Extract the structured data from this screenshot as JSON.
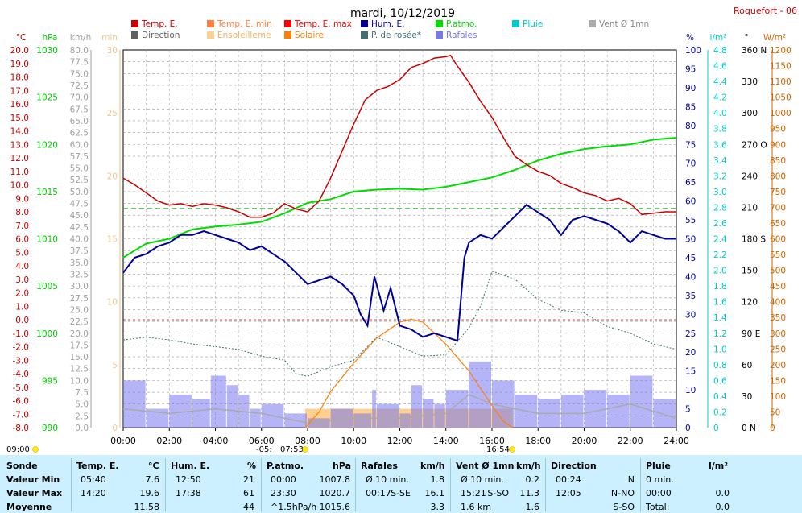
{
  "header": {
    "title": "mardi, 10/12/2019",
    "station": "Roquefort - 06"
  },
  "colors": {
    "temp": "#cc0000",
    "temp_min": "#ff8040",
    "temp_max": "#ff0000",
    "direction": "#606060",
    "ensoleillement": "#ffd090",
    "solaire": "#ff8000",
    "hum": "#000099",
    "pressure": "#00dd00",
    "dewpoint": "#407070",
    "pluie": "#00cccc",
    "rafales": "#7777ee",
    "vent": "#aaaaaa"
  },
  "legend": [
    {
      "label": "Temp. E.",
      "color": "#cc0000"
    },
    {
      "label": "Temp. E. min",
      "color": "#ff8040"
    },
    {
      "label": "Temp. E. max",
      "color": "#ff0000"
    },
    {
      "label": "Hum. E.",
      "color": "#000099"
    },
    {
      "label": "P.atmo.",
      "color": "#00dd00"
    },
    {
      "label": "Pluie",
      "color": "#00cccc"
    },
    {
      "label": "Vent Ø 1mn",
      "color": "#aaaaaa"
    },
    {
      "label": "Direction",
      "color": "#606060"
    },
    {
      "label": "Ensoleilleme",
      "color": "#ffd090"
    },
    {
      "label": "Solaire",
      "color": "#ff8000"
    },
    {
      "label": "P. de rosée*",
      "color": "#407070"
    },
    {
      "label": "Rafales",
      "color": "#7777ee"
    }
  ],
  "axes": {
    "temp": {
      "unit": "°C",
      "ticks": [
        "20.0",
        "19.0",
        "18.0",
        "17.0",
        "16.0",
        "15.0",
        "14.0",
        "13.0",
        "12.0",
        "11.0",
        "10.0",
        "9.0",
        "8.0",
        "7.0",
        "6.0",
        "5.0",
        "4.0",
        "3.0",
        "2.0",
        "1.0",
        "0.0",
        "-1.0",
        "-2.0",
        "-3.0",
        "-4.0",
        "-5.0",
        "-6.0",
        "-7.0",
        "-8.0"
      ]
    },
    "pressure": {
      "unit": "hPa",
      "ticks": [
        "1030",
        "1025",
        "1020",
        "1015",
        "1010",
        "1005",
        "1000",
        "995",
        "990"
      ]
    },
    "wind": {
      "unit": "km/h",
      "ticks": [
        "80.0",
        "77.5",
        "75.0",
        "72.5",
        "70.0",
        "67.5",
        "65.0",
        "62.5",
        "60.0",
        "57.5",
        "55.0",
        "52.5",
        "50.0",
        "47.5",
        "45.0",
        "42.5",
        "40.0",
        "37.5",
        "35.0",
        "32.5",
        "30.0",
        "27.5",
        "25.0",
        "22.5",
        "20.0",
        "17.5",
        "15.0",
        "12.5",
        "10.0",
        "7.5",
        "5.0",
        "2.5",
        "0.0"
      ]
    },
    "min": {
      "unit": "min",
      "ticks": [
        "30",
        "25",
        "20",
        "15",
        "10",
        "5",
        "0"
      ]
    },
    "hum": {
      "unit": "%",
      "ticks": [
        "100",
        "95",
        "90",
        "85",
        "80",
        "75",
        "70",
        "65",
        "60",
        "55",
        "50",
        "45",
        "40",
        "35",
        "30",
        "25",
        "20",
        "15",
        "10",
        "5",
        "0"
      ]
    },
    "rain": {
      "unit": "l/m²",
      "ticks": [
        "4.8",
        "4.6",
        "4.4",
        "4.2",
        "4.0",
        "3.8",
        "3.6",
        "3.4",
        "3.2",
        "3.0",
        "2.8",
        "2.6",
        "2.4",
        "2.2",
        "2.0",
        "1.8",
        "1.6",
        "1.4",
        "1.2",
        "1.0",
        "0.8",
        "0.6",
        "0.4",
        "0.2",
        "0"
      ]
    },
    "dir": {
      "unit": "°",
      "ticks": [
        "360 N",
        "330",
        "300",
        "270 O",
        "240",
        "210",
        "180 S",
        "150",
        "120",
        "90 E",
        "60",
        "30",
        "0 N"
      ]
    },
    "solar": {
      "unit": "W/m²",
      "ticks": [
        "1200",
        "1150",
        "1100",
        "1050",
        "1000",
        "950",
        "900",
        "850",
        "800",
        "750",
        "700",
        "650",
        "600",
        "550",
        "500",
        "450",
        "400",
        "350",
        "300",
        "250",
        "200",
        "150",
        "100",
        "50",
        "0"
      ]
    },
    "time": {
      "ticks": [
        "00:00",
        "02:00",
        "04:00",
        "06:00",
        "08:00",
        "10:00",
        "12:00",
        "14:00",
        "16:00",
        "18:00",
        "20:00",
        "22:00",
        "24:00"
      ]
    }
  },
  "sun": {
    "prev": "09:00",
    "sunrise": "07:53",
    "sunset": "16:54",
    "dawn_note": "-05:"
  },
  "chart_data": {
    "type": "line",
    "x_unit": "hours",
    "series": [
      {
        "name": "Temp. E.",
        "unit": "°C",
        "points": [
          [
            0,
            10.5
          ],
          [
            0.5,
            10
          ],
          [
            1,
            9.4
          ],
          [
            1.5,
            8.8
          ],
          [
            2,
            8.5
          ],
          [
            2.5,
            8.6
          ],
          [
            3,
            8.4
          ],
          [
            3.5,
            8.6
          ],
          [
            4,
            8.5
          ],
          [
            4.5,
            8.3
          ],
          [
            5,
            8
          ],
          [
            5.5,
            7.6
          ],
          [
            6,
            7.6
          ],
          [
            6.5,
            7.9
          ],
          [
            7,
            8.6
          ],
          [
            7.5,
            8.2
          ],
          [
            8,
            8
          ],
          [
            8.5,
            8.8
          ],
          [
            9,
            10.5
          ],
          [
            9.5,
            12.5
          ],
          [
            10,
            14.5
          ],
          [
            10.5,
            16.3
          ],
          [
            11,
            17
          ],
          [
            11.5,
            17.3
          ],
          [
            12,
            17.8
          ],
          [
            12.5,
            18.7
          ],
          [
            13,
            19
          ],
          [
            13.5,
            19.4
          ],
          [
            14,
            19.5
          ],
          [
            14.2,
            19.6
          ],
          [
            14.5,
            18.8
          ],
          [
            15,
            17.6
          ],
          [
            15.5,
            16.2
          ],
          [
            16,
            15
          ],
          [
            16.5,
            13.5
          ],
          [
            17,
            12.1
          ],
          [
            17.5,
            11.5
          ],
          [
            18,
            11
          ],
          [
            18.5,
            10.7
          ],
          [
            19,
            10.1
          ],
          [
            19.5,
            9.8
          ],
          [
            20,
            9.4
          ],
          [
            20.5,
            9.2
          ],
          [
            21,
            8.8
          ],
          [
            21.5,
            9
          ],
          [
            22,
            8.6
          ],
          [
            22.5,
            7.8
          ],
          [
            23,
            7.9
          ],
          [
            23.5,
            8
          ],
          [
            24,
            8
          ]
        ]
      },
      {
        "name": "Hum. E.",
        "unit": "%",
        "points": [
          [
            0,
            41
          ],
          [
            0.5,
            45
          ],
          [
            1,
            46
          ],
          [
            1.5,
            48
          ],
          [
            2,
            49
          ],
          [
            2.5,
            51
          ],
          [
            3,
            51
          ],
          [
            3.5,
            52
          ],
          [
            4,
            51
          ],
          [
            4.5,
            50
          ],
          [
            5,
            49
          ],
          [
            5.5,
            47
          ],
          [
            6,
            48
          ],
          [
            6.5,
            46
          ],
          [
            7,
            44
          ],
          [
            7.5,
            41
          ],
          [
            8,
            38
          ],
          [
            8.5,
            39
          ],
          [
            9,
            40
          ],
          [
            9.5,
            38
          ],
          [
            10,
            35
          ],
          [
            10.3,
            30
          ],
          [
            10.6,
            27
          ],
          [
            10.9,
            40
          ],
          [
            11.3,
            31
          ],
          [
            11.6,
            37
          ],
          [
            12,
            27
          ],
          [
            12.5,
            26
          ],
          [
            13,
            24
          ],
          [
            13.5,
            25
          ],
          [
            14,
            24
          ],
          [
            14.5,
            23
          ],
          [
            14.8,
            45
          ],
          [
            15,
            49
          ],
          [
            15.5,
            51
          ],
          [
            16,
            50
          ],
          [
            16.5,
            53
          ],
          [
            17,
            56
          ],
          [
            17.5,
            59
          ],
          [
            18,
            57
          ],
          [
            18.5,
            55
          ],
          [
            19,
            51
          ],
          [
            19.5,
            55
          ],
          [
            20,
            56
          ],
          [
            20.5,
            55
          ],
          [
            21,
            54
          ],
          [
            21.5,
            52
          ],
          [
            22,
            49
          ],
          [
            22.5,
            52
          ],
          [
            23,
            51
          ],
          [
            23.5,
            50
          ],
          [
            24,
            50
          ]
        ]
      },
      {
        "name": "P.atmo.",
        "unit": "hPa",
        "points": [
          [
            0,
            1008
          ],
          [
            1,
            1009.5
          ],
          [
            2,
            1010
          ],
          [
            3,
            1011
          ],
          [
            4,
            1011.3
          ],
          [
            5,
            1011.5
          ],
          [
            6,
            1011.8
          ],
          [
            7,
            1012.7
          ],
          [
            8,
            1013.8
          ],
          [
            9,
            1014.2
          ],
          [
            10,
            1015
          ],
          [
            11,
            1015.2
          ],
          [
            12,
            1015.3
          ],
          [
            13,
            1015.2
          ],
          [
            14,
            1015.5
          ],
          [
            15,
            1016
          ],
          [
            16,
            1016.5
          ],
          [
            17,
            1017.3
          ],
          [
            18,
            1018.3
          ],
          [
            19,
            1019
          ],
          [
            20,
            1019.5
          ],
          [
            21,
            1019.8
          ],
          [
            22,
            1020
          ],
          [
            23,
            1020.5
          ],
          [
            24,
            1020.7
          ]
        ]
      },
      {
        "name": "P. de rosée*",
        "unit": "°C",
        "points": [
          [
            0,
            -1.5
          ],
          [
            1,
            -1.3
          ],
          [
            2,
            -1.5
          ],
          [
            3,
            -1.8
          ],
          [
            4,
            -2
          ],
          [
            5,
            -2.2
          ],
          [
            6,
            -2.7
          ],
          [
            7,
            -3
          ],
          [
            7.5,
            -4
          ],
          [
            8,
            -4.2
          ],
          [
            9,
            -3.5
          ],
          [
            10,
            -3
          ],
          [
            11,
            -1.3
          ],
          [
            12,
            -2
          ],
          [
            13,
            -2.7
          ],
          [
            14,
            -2.6
          ],
          [
            15,
            -0.6
          ],
          [
            15.5,
            1
          ],
          [
            16,
            3.6
          ],
          [
            17,
            3
          ],
          [
            18,
            1.5
          ],
          [
            19,
            0.7
          ],
          [
            20,
            0.5
          ],
          [
            21,
            -0.5
          ],
          [
            22,
            -1
          ],
          [
            23,
            -1.8
          ],
          [
            24,
            -2.2
          ]
        ]
      },
      {
        "name": "Solaire",
        "unit": "W/m²",
        "points": [
          [
            7.9,
            0
          ],
          [
            8.5,
            50
          ],
          [
            9,
            115
          ],
          [
            10,
            205
          ],
          [
            11,
            285
          ],
          [
            12,
            335
          ],
          [
            12.5,
            345
          ],
          [
            13,
            335
          ],
          [
            14,
            265
          ],
          [
            15,
            180
          ],
          [
            16,
            70
          ],
          [
            16.5,
            20
          ],
          [
            16.9,
            0
          ]
        ]
      },
      {
        "name": "Ensoleilleme",
        "unit": "min",
        "points": [
          [
            7.9,
            1.5
          ],
          [
            16.9,
            1.5
          ]
        ]
      },
      {
        "name": "Rafales",
        "unit": "km/h",
        "points": [
          [
            0,
            10
          ],
          [
            1,
            4
          ],
          [
            2,
            7
          ],
          [
            3,
            6
          ],
          [
            3.8,
            11
          ],
          [
            4.5,
            9
          ],
          [
            5,
            7
          ],
          [
            5.5,
            4
          ],
          [
            6,
            5
          ],
          [
            7,
            3
          ],
          [
            8,
            2
          ],
          [
            9,
            4
          ],
          [
            10,
            3
          ],
          [
            10.8,
            8
          ],
          [
            11,
            5
          ],
          [
            12,
            3
          ],
          [
            12.5,
            9
          ],
          [
            13,
            6
          ],
          [
            13.5,
            5
          ],
          [
            14,
            8
          ],
          [
            15,
            14
          ],
          [
            16,
            10
          ],
          [
            17,
            7
          ],
          [
            18,
            6
          ],
          [
            19,
            7
          ],
          [
            20,
            8
          ],
          [
            21,
            7
          ],
          [
            22,
            11
          ],
          [
            23,
            6
          ],
          [
            24,
            4
          ]
        ]
      },
      {
        "name": "Vent Ø 1mn",
        "unit": "km/h",
        "points": [
          [
            0,
            4
          ],
          [
            2,
            3
          ],
          [
            4,
            4
          ],
          [
            6,
            3
          ],
          [
            8,
            1
          ],
          [
            10,
            2
          ],
          [
            12,
            2
          ],
          [
            14,
            3
          ],
          [
            15,
            7
          ],
          [
            16,
            5
          ],
          [
            18,
            3
          ],
          [
            20,
            3
          ],
          [
            22,
            5
          ],
          [
            24,
            2
          ]
        ]
      }
    ],
    "title": "mardi, 10/12/2019",
    "xlim": [
      0,
      24
    ],
    "grid": true,
    "legend_placement": "top"
  },
  "summary": {
    "headers": {
      "sonde": "Sonde",
      "temp": "Temp. E.",
      "temp_u": "°C",
      "hum": "Hum. E.",
      "hum_u": "%",
      "patmo": "P.atmo.",
      "patmo_u": "hPa",
      "raf": "Rafales",
      "raf_u": "km/h",
      "vent": "Vent Ø 1mn",
      "vent_u": "km/h",
      "dir": "Direction",
      "pluie": "Pluie",
      "pluie_u": "l/m²"
    },
    "rows": [
      {
        "label": "Valeur Min",
        "temp_t": "05:40",
        "temp_v": "7.6",
        "hum_t": "12:50",
        "hum_v": "21",
        "p_t": "00:00",
        "p_v": "1007.8",
        "raf_t": "Ø 10 min.",
        "raf_d": "",
        "raf_v": "1.8",
        "vent_t": "Ø 10 min.",
        "vent_d": "",
        "vent_v": "0.2",
        "dir_t": "00:24",
        "dir_v": "N",
        "pl_t": "0 min.",
        "pl_v": ""
      },
      {
        "label": "Valeur Max",
        "temp_t": "14:20",
        "temp_v": "19.6",
        "hum_t": "17:38",
        "hum_v": "61",
        "p_t": "23:30",
        "p_v": "1020.7",
        "raf_t": "00:17",
        "raf_d": "S-SE",
        "raf_v": "16.1",
        "vent_t": "15:21",
        "vent_d": "S-SO",
        "vent_v": "11.3",
        "dir_t": "12:05",
        "dir_v": "N-NO",
        "pl_t": "00:00",
        "pl_v": "0.0"
      },
      {
        "label": "Moyenne",
        "temp_t": "",
        "temp_v": "11.58",
        "hum_t": "",
        "hum_v": "44",
        "p_t": "^1.5hPa/h",
        "p_v": "1015.6",
        "raf_t": "",
        "raf_d": "",
        "raf_v": "3.3",
        "vent_t": "1.6 km",
        "vent_d": "",
        "vent_v": "1.6",
        "dir_t": "",
        "dir_v": "S-SO",
        "pl_t": "Total:",
        "pl_v": "0.0"
      }
    ]
  }
}
